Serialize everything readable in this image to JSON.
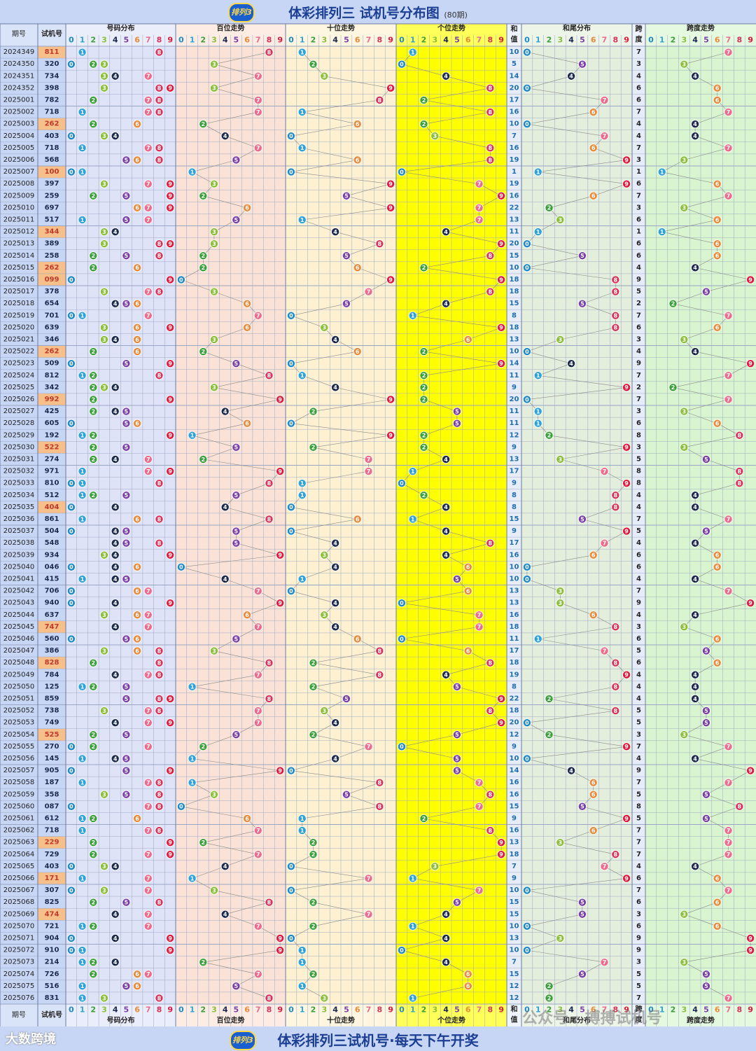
{
  "title": "体彩排列三 试机号分布图",
  "title_sub": "(80期)",
  "logo_text": "排列3",
  "footer_title": "体彩排列三试机号·每天下午开奖",
  "brand": "大数跨境",
  "watermark": "公众号 · 搏搏试机号",
  "headers": {
    "period": "期号",
    "number": "试机号",
    "dist": "号码分布",
    "hundreds": "百位走势",
    "tens": "十位走势",
    "units": "个位走势",
    "sum_top": "和",
    "sum_bottom": "值",
    "tail": "和尾分布",
    "span_top": "跨",
    "span_bottom": "度",
    "span_trend": "跨度走势"
  },
  "digits": [
    "0",
    "1",
    "2",
    "3",
    "4",
    "5",
    "6",
    "7",
    "8",
    "9"
  ],
  "colors": {
    "0": "#1f8ac6",
    "1": "#2fa3d8",
    "2": "#3aa03a",
    "3": "#8bbf3a",
    "4": "#1c2a4e",
    "5": "#7b3fa8",
    "6": "#e98a3a",
    "7": "#ec6c8e",
    "8": "#d8335a",
    "9": "#e0183b",
    "highlight_row": "#f7c08b",
    "header_bg": "#c7d6f5",
    "dist_bg": "#dfe3f7",
    "hundreds_bg": "#fbe2d6",
    "tens_bg": "#fdf1d2",
    "units_bg": "#ffff00",
    "tail_bg": "#e3eedc",
    "span_bg": "#d8f5d0"
  },
  "chart_data": {
    "type": "table",
    "columns": [
      "期号",
      "试机号",
      "和值",
      "跨度"
    ],
    "rows": [
      {
        "period": "2024349",
        "number": "811",
        "sum": 10,
        "span": 7,
        "highlight": true
      },
      {
        "period": "2024350",
        "number": "320",
        "sum": 5,
        "span": 3,
        "highlight": false
      },
      {
        "period": "2024351",
        "number": "734",
        "sum": 14,
        "span": 4,
        "highlight": false
      },
      {
        "period": "2024352",
        "number": "398",
        "sum": 20,
        "span": 6,
        "highlight": false
      },
      {
        "period": "2025001",
        "number": "782",
        "sum": 17,
        "span": 6,
        "highlight": false
      },
      {
        "period": "2025002",
        "number": "718",
        "sum": 16,
        "span": 7,
        "highlight": false
      },
      {
        "period": "2025003",
        "number": "262",
        "sum": 10,
        "span": 4,
        "highlight": true
      },
      {
        "period": "2025004",
        "number": "403",
        "sum": 7,
        "span": 4,
        "highlight": false
      },
      {
        "period": "2025005",
        "number": "718",
        "sum": 16,
        "span": 7,
        "highlight": false
      },
      {
        "period": "2025006",
        "number": "568",
        "sum": 19,
        "span": 3,
        "highlight": false
      },
      {
        "period": "2025007",
        "number": "100",
        "sum": 1,
        "span": 1,
        "highlight": true
      },
      {
        "period": "2025008",
        "number": "397",
        "sum": 19,
        "span": 6,
        "highlight": false
      },
      {
        "period": "2025009",
        "number": "259",
        "sum": 16,
        "span": 7,
        "highlight": false
      },
      {
        "period": "2025010",
        "number": "697",
        "sum": 22,
        "span": 3,
        "highlight": false
      },
      {
        "period": "2025011",
        "number": "517",
        "sum": 13,
        "span": 6,
        "highlight": false
      },
      {
        "period": "2025012",
        "number": "344",
        "sum": 11,
        "span": 1,
        "highlight": true
      },
      {
        "period": "2025013",
        "number": "389",
        "sum": 20,
        "span": 6,
        "highlight": false
      },
      {
        "period": "2025014",
        "number": "258",
        "sum": 15,
        "span": 6,
        "highlight": false
      },
      {
        "period": "2025015",
        "number": "262",
        "sum": 10,
        "span": 4,
        "highlight": true
      },
      {
        "period": "2025016",
        "number": "099",
        "sum": 18,
        "span": 9,
        "highlight": true
      },
      {
        "period": "2025017",
        "number": "378",
        "sum": 18,
        "span": 5,
        "highlight": false
      },
      {
        "period": "2025018",
        "number": "654",
        "sum": 15,
        "span": 2,
        "highlight": false
      },
      {
        "period": "2025019",
        "number": "701",
        "sum": 8,
        "span": 7,
        "highlight": false
      },
      {
        "period": "2025020",
        "number": "639",
        "sum": 18,
        "span": 6,
        "highlight": false
      },
      {
        "period": "2025021",
        "number": "346",
        "sum": 13,
        "span": 3,
        "highlight": false
      },
      {
        "period": "2025022",
        "number": "262",
        "sum": 10,
        "span": 4,
        "highlight": true
      },
      {
        "period": "2025023",
        "number": "509",
        "sum": 14,
        "span": 9,
        "highlight": false
      },
      {
        "period": "2025024",
        "number": "812",
        "sum": 11,
        "span": 7,
        "highlight": false
      },
      {
        "period": "2025025",
        "number": "342",
        "sum": 9,
        "span": 2,
        "highlight": false
      },
      {
        "period": "2025026",
        "number": "992",
        "sum": 20,
        "span": 7,
        "highlight": true
      },
      {
        "period": "2025027",
        "number": "425",
        "sum": 11,
        "span": 3,
        "highlight": false
      },
      {
        "period": "2025028",
        "number": "605",
        "sum": 11,
        "span": 6,
        "highlight": false
      },
      {
        "period": "2025029",
        "number": "192",
        "sum": 12,
        "span": 8,
        "highlight": false
      },
      {
        "period": "2025030",
        "number": "522",
        "sum": 9,
        "span": 3,
        "highlight": true
      },
      {
        "period": "2025031",
        "number": "274",
        "sum": 13,
        "span": 5,
        "highlight": false
      },
      {
        "period": "2025032",
        "number": "971",
        "sum": 17,
        "span": 8,
        "highlight": false
      },
      {
        "period": "2025033",
        "number": "810",
        "sum": 9,
        "span": 8,
        "highlight": false
      },
      {
        "period": "2025034",
        "number": "512",
        "sum": 8,
        "span": 4,
        "highlight": false
      },
      {
        "period": "2025035",
        "number": "404",
        "sum": 8,
        "span": 4,
        "highlight": true
      },
      {
        "period": "2025036",
        "number": "861",
        "sum": 15,
        "span": 7,
        "highlight": false
      },
      {
        "period": "2025037",
        "number": "504",
        "sum": 9,
        "span": 5,
        "highlight": false
      },
      {
        "period": "2025038",
        "number": "548",
        "sum": 17,
        "span": 4,
        "highlight": false
      },
      {
        "period": "2025039",
        "number": "934",
        "sum": 16,
        "span": 6,
        "highlight": false
      },
      {
        "period": "2025040",
        "number": "046",
        "sum": 10,
        "span": 6,
        "highlight": false
      },
      {
        "period": "2025041",
        "number": "415",
        "sum": 10,
        "span": 4,
        "highlight": false
      },
      {
        "period": "2025042",
        "number": "706",
        "sum": 13,
        "span": 7,
        "highlight": false
      },
      {
        "period": "2025043",
        "number": "940",
        "sum": 13,
        "span": 9,
        "highlight": false
      },
      {
        "period": "2025044",
        "number": "637",
        "sum": 16,
        "span": 4,
        "highlight": false
      },
      {
        "period": "2025045",
        "number": "747",
        "sum": 18,
        "span": 3,
        "highlight": true
      },
      {
        "period": "2025046",
        "number": "560",
        "sum": 11,
        "span": 6,
        "highlight": false
      },
      {
        "period": "2025047",
        "number": "386",
        "sum": 17,
        "span": 5,
        "highlight": false
      },
      {
        "period": "2025048",
        "number": "828",
        "sum": 18,
        "span": 6,
        "highlight": true
      },
      {
        "period": "2025049",
        "number": "784",
        "sum": 19,
        "span": 4,
        "highlight": false
      },
      {
        "period": "2025050",
        "number": "125",
        "sum": 8,
        "span": 4,
        "highlight": false
      },
      {
        "period": "2025051",
        "number": "859",
        "sum": 22,
        "span": 4,
        "highlight": false
      },
      {
        "period": "2025052",
        "number": "738",
        "sum": 18,
        "span": 5,
        "highlight": false
      },
      {
        "period": "2025053",
        "number": "749",
        "sum": 20,
        "span": 5,
        "highlight": false
      },
      {
        "period": "2025054",
        "number": "525",
        "sum": 12,
        "span": 3,
        "highlight": true
      },
      {
        "period": "2025055",
        "number": "270",
        "sum": 9,
        "span": 7,
        "highlight": false
      },
      {
        "period": "2025056",
        "number": "145",
        "sum": 10,
        "span": 4,
        "highlight": false
      },
      {
        "period": "2025057",
        "number": "905",
        "sum": 14,
        "span": 9,
        "highlight": false
      },
      {
        "period": "2025058",
        "number": "187",
        "sum": 16,
        "span": 7,
        "highlight": false
      },
      {
        "period": "2025059",
        "number": "358",
        "sum": 16,
        "span": 5,
        "highlight": false
      },
      {
        "period": "2025060",
        "number": "087",
        "sum": 15,
        "span": 8,
        "highlight": false
      },
      {
        "period": "2025061",
        "number": "612",
        "sum": 9,
        "span": 5,
        "highlight": false
      },
      {
        "period": "2025062",
        "number": "718",
        "sum": 16,
        "span": 7,
        "highlight": false
      },
      {
        "period": "2025063",
        "number": "229",
        "sum": 13,
        "span": 7,
        "highlight": true
      },
      {
        "period": "2025064",
        "number": "729",
        "sum": 18,
        "span": 7,
        "highlight": false
      },
      {
        "period": "2025065",
        "number": "403",
        "sum": 7,
        "span": 4,
        "highlight": false
      },
      {
        "period": "2025066",
        "number": "171",
        "sum": 9,
        "span": 6,
        "highlight": true
      },
      {
        "period": "2025067",
        "number": "307",
        "sum": 10,
        "span": 7,
        "highlight": false
      },
      {
        "period": "2025068",
        "number": "825",
        "sum": 15,
        "span": 6,
        "highlight": false
      },
      {
        "period": "2025069",
        "number": "474",
        "sum": 15,
        "span": 3,
        "highlight": true
      },
      {
        "period": "2025070",
        "number": "721",
        "sum": 10,
        "span": 6,
        "highlight": false
      },
      {
        "period": "2025071",
        "number": "904",
        "sum": 13,
        "span": 9,
        "highlight": false
      },
      {
        "period": "2025072",
        "number": "910",
        "sum": 10,
        "span": 9,
        "highlight": false
      },
      {
        "period": "2025073",
        "number": "214",
        "sum": 7,
        "span": 3,
        "highlight": false
      },
      {
        "period": "2025074",
        "number": "726",
        "sum": 15,
        "span": 5,
        "highlight": false
      },
      {
        "period": "2025075",
        "number": "516",
        "sum": 12,
        "span": 5,
        "highlight": false
      },
      {
        "period": "2025076",
        "number": "831",
        "sum": 12,
        "span": 7,
        "highlight": false
      }
    ]
  }
}
